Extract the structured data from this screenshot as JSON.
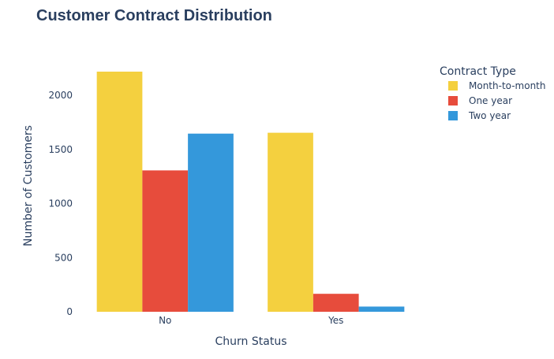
{
  "chart_data": {
    "type": "bar",
    "title": "Customer Contract Distribution",
    "xlabel": "Churn Status",
    "ylabel": "Number of Customers",
    "categories": [
      "No",
      "Yes"
    ],
    "series": [
      {
        "name": "Month-to-month",
        "values": [
          2220,
          1655
        ],
        "color": "#f4d03f"
      },
      {
        "name": "One year",
        "values": [
          1307,
          166
        ],
        "color": "#e74c3c"
      },
      {
        "name": "Two year",
        "values": [
          1647,
          48
        ],
        "color": "#3498db"
      }
    ],
    "ylim": [
      0,
      2300
    ],
    "yticks": [
      0,
      500,
      1000,
      1500,
      2000
    ],
    "grid": false,
    "legend": {
      "title": "Contract Type",
      "placement": "right"
    }
  }
}
